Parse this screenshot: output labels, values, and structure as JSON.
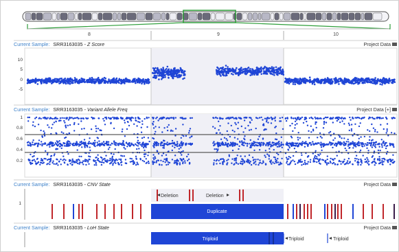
{
  "chromosome_nav": {
    "chromosomes": [
      "8",
      "9",
      "10"
    ],
    "highlight_color": "#2e9e3a"
  },
  "panels": {
    "zscore": {
      "label": "Current Sample:",
      "sample": "SRR3163035",
      "track": " - Z Score",
      "project_data": "Project Data",
      "y_ticks": [
        "10",
        "5",
        "0",
        "-5"
      ]
    },
    "vaf": {
      "label": "Current Sample:",
      "sample": "SRR3163035",
      "track": " - Variant Allele Freq",
      "project_data": "Project Data [+]",
      "y_ticks": [
        "1",
        "0.8",
        "0.6",
        "0.4",
        "0.2"
      ]
    },
    "cnv": {
      "label": "Current Sample:",
      "sample": "SRR3163035",
      "track": " - CNV State",
      "project_data": "Project Data",
      "y_ticks": [
        "1"
      ],
      "annotations": {
        "deletion_left": "Deletion",
        "deletion_right": "Deletion",
        "duplicate": "Duplicate"
      }
    },
    "loh": {
      "label": "Current Sample:",
      "sample": "SRR3163035",
      "track": " - LoH State",
      "project_data": "Project Data",
      "annotations": {
        "triploid_main": "Triploid",
        "triploid_a": "Triploid",
        "triploid_b": "Triploid"
      }
    }
  },
  "colors": {
    "label_blue": "#3a7fc9",
    "point_blue": "#1f45d6",
    "bar_blue": "#1f45d6",
    "cnv_red": "#c0262a",
    "nav_green": "#2e9e3a"
  }
}
